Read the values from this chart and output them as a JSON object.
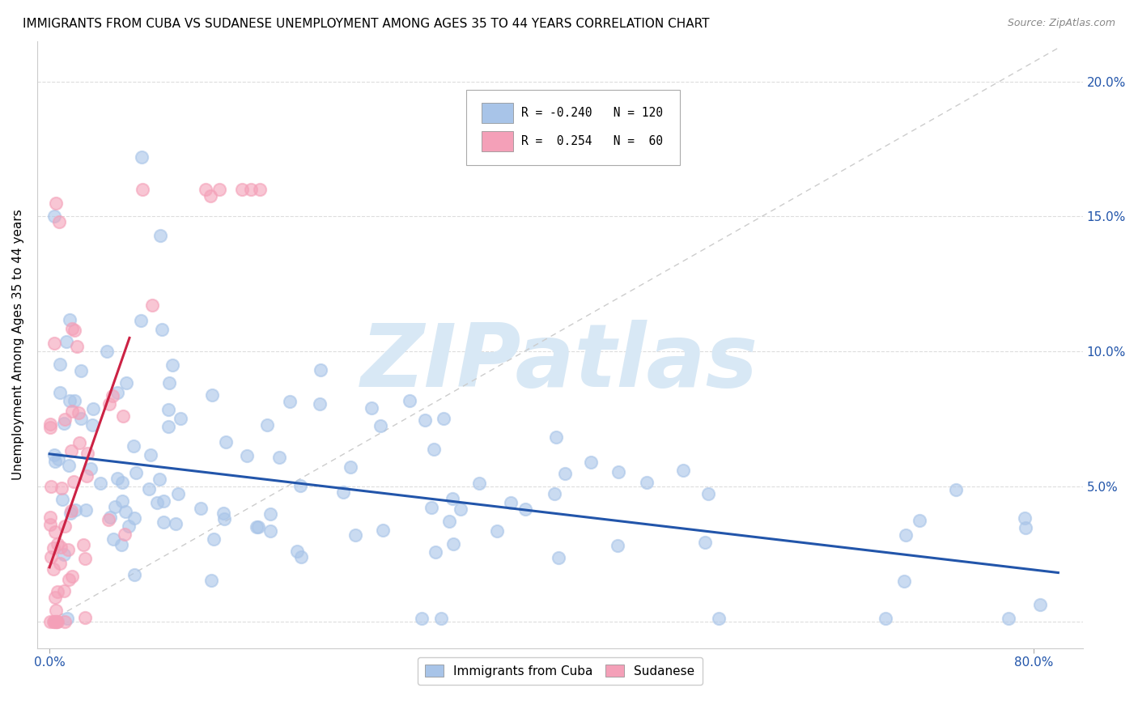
{
  "title": "IMMIGRANTS FROM CUBA VS SUDANESE UNEMPLOYMENT AMONG AGES 35 TO 44 YEARS CORRELATION CHART",
  "source": "Source: ZipAtlas.com",
  "ylabel": "Unemployment Among Ages 35 to 44 years",
  "y_ticks": [
    0.0,
    0.05,
    0.1,
    0.15,
    0.2
  ],
  "y_tick_labels": [
    "",
    "5.0%",
    "10.0%",
    "15.0%",
    "20.0%"
  ],
  "xlim": [
    -0.01,
    0.84
  ],
  "ylim": [
    -0.01,
    0.215
  ],
  "legend_blue_r": "-0.240",
  "legend_blue_n": "120",
  "legend_pink_r": "0.254",
  "legend_pink_n": "60",
  "blue_color": "#a8c4e8",
  "pink_color": "#f4a0b8",
  "trend_blue_color": "#2255aa",
  "trend_pink_color": "#cc2244",
  "watermark_color": "#d8e8f5",
  "watermark_text": "ZIPatlas",
  "title_fontsize": 11,
  "source_fontsize": 9,
  "R_blue": -0.24,
  "N_blue": 120,
  "R_pink": 0.254,
  "N_pink": 60,
  "blue_trend_x0": 0.0,
  "blue_trend_y0": 0.062,
  "blue_trend_x1": 0.82,
  "blue_trend_y1": 0.018,
  "pink_trend_x0": 0.0,
  "pink_trend_y0": 0.02,
  "pink_trend_x1": 0.065,
  "pink_trend_y1": 0.105
}
